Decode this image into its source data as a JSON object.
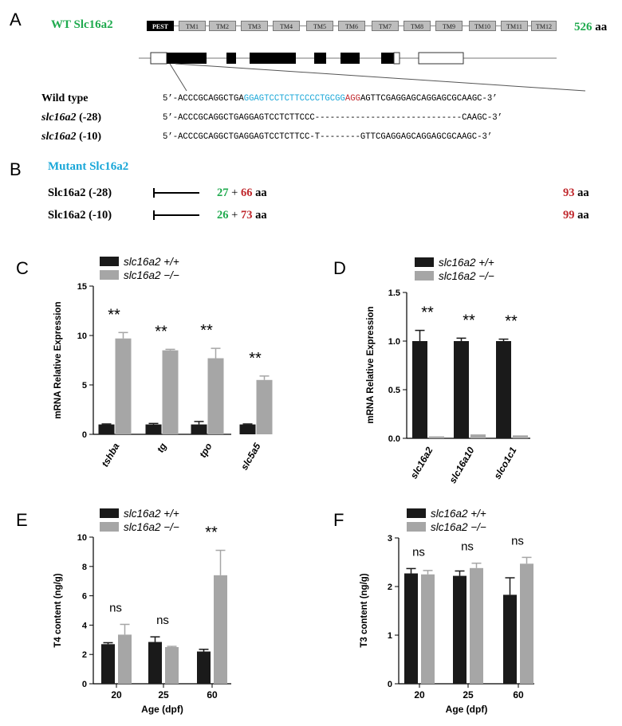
{
  "panelA": {
    "letter": "A",
    "title": "WT Slc16a2",
    "length_value": "526",
    "length_unit": "aa",
    "domains": [
      "PEST",
      "TM1",
      "TM2",
      "TM3",
      "TM4",
      "TM5",
      "TM6",
      "TM7",
      "TM8",
      "TM9",
      "TM10",
      "TM11",
      "TM12"
    ],
    "sequences": [
      {
        "label": "Wild type",
        "italic": false,
        "prefix": "5’-ACCCGCAGGCTGA",
        "target": "GGAGTCCTCTTCCCCTGCGG",
        "pam": "AGG",
        "suffix": "AGTTCGAGGAGCAGGAGCGCAAGC-3’"
      },
      {
        "label": "slc16a2",
        "allele": "(-28)",
        "italic": true,
        "text": "5’-ACCCGCAGGCTGAGGAGTCCTCTTCCC-----------------------------CAAGC-3’"
      },
      {
        "label": "slc16a2",
        "allele": "(-10)",
        "italic": true,
        "text": "5’-ACCCGCAGGCTGAGGAGTCCTCTTCC-T--------GTTCGAGGAGCAGGAGCGCAAGC-3’"
      }
    ]
  },
  "panelB": {
    "letter": "B",
    "title": "Mutant Slc16a2",
    "rows": [
      {
        "label": "Slc16a2 (-28)",
        "wt_part": "27",
        "plus": "+",
        "fs_part": "66",
        "unit": "aa",
        "total": "93",
        "total_unit": "aa"
      },
      {
        "label": "Slc16a2 (-10)",
        "wt_part": "26",
        "plus": "+",
        "fs_part": "73",
        "unit": "aa",
        "total": "99",
        "total_unit": "aa"
      }
    ]
  },
  "colors": {
    "wt_bar": "#1a1a1a",
    "ko_bar": "#a6a6a6",
    "green": "#1faa4e",
    "red": "#c0282d",
    "cyan": "#1aa7d8"
  },
  "chart_data": [
    {
      "id": "C",
      "letter": "C",
      "type": "bar",
      "ylabel": "mRNA Relative Expression",
      "ylim": [
        0,
        15
      ],
      "yticks": [
        "0",
        "5",
        "10",
        "15"
      ],
      "ytickvals": [
        0,
        5,
        10,
        15
      ],
      "categories": [
        "tshba",
        "tg",
        "tpo",
        "slc5a5"
      ],
      "legend": [
        "slc16a2 +/+",
        "slc16a2 −/−"
      ],
      "series": [
        {
          "name": "slc16a2 +/+",
          "values": [
            1.0,
            1.0,
            1.0,
            1.0
          ],
          "err": [
            0.05,
            0.1,
            0.3,
            0.05
          ]
        },
        {
          "name": "slc16a2 −/−",
          "values": [
            9.7,
            8.5,
            7.7,
            5.5
          ],
          "err": [
            0.6,
            0.1,
            1.0,
            0.4
          ]
        }
      ],
      "annotations": [
        "**",
        "**",
        "**",
        "**"
      ]
    },
    {
      "id": "D",
      "letter": "D",
      "type": "bar",
      "ylabel": "mRNA Relative Expression",
      "ylim": [
        0,
        1.5
      ],
      "yticks": [
        "0.0",
        "0.5",
        "1.0",
        "1.5"
      ],
      "ytickvals": [
        0,
        0.5,
        1.0,
        1.5
      ],
      "categories": [
        "slc16a2",
        "slc16a10",
        "slco1c1"
      ],
      "legend": [
        "slc16a2 +/+",
        "slc16a2 −/−"
      ],
      "series": [
        {
          "name": "slc16a2 +/+",
          "values": [
            1.0,
            1.0,
            1.0
          ],
          "err": [
            0.11,
            0.03,
            0.02
          ]
        },
        {
          "name": "slc16a2 −/−",
          "values": [
            0.02,
            0.04,
            0.03
          ],
          "err": [
            0.0,
            0.0,
            0.0
          ]
        }
      ],
      "annotations": [
        "**",
        "**",
        "**"
      ]
    },
    {
      "id": "E",
      "letter": "E",
      "type": "bar",
      "ylabel": "T4 content (ng/g)",
      "xlabel": "Age (dpf)",
      "ylim": [
        0,
        10
      ],
      "yticks": [
        "0",
        "2",
        "4",
        "6",
        "8",
        "10"
      ],
      "ytickvals": [
        0,
        2,
        4,
        6,
        8,
        10
      ],
      "categories": [
        "20",
        "25",
        "60"
      ],
      "legend": [
        "slc16a2 +/+",
        "slc16a2 −/−"
      ],
      "series": [
        {
          "name": "slc16a2 +/+",
          "values": [
            2.7,
            2.85,
            2.2
          ],
          "err": [
            0.1,
            0.35,
            0.15
          ]
        },
        {
          "name": "slc16a2 −/−",
          "values": [
            3.35,
            2.5,
            7.4
          ],
          "err": [
            0.7,
            0.05,
            1.7
          ]
        }
      ],
      "annotations": [
        "ns",
        "ns",
        "**"
      ]
    },
    {
      "id": "F",
      "letter": "F",
      "type": "bar",
      "ylabel": "T3 content (ng/g)",
      "xlabel": "Age (dpf)",
      "ylim": [
        0,
        3
      ],
      "yticks": [
        "0",
        "1",
        "2",
        "3"
      ],
      "ytickvals": [
        0,
        1,
        2,
        3
      ],
      "categories": [
        "20",
        "25",
        "60"
      ],
      "legend": [
        "slc16a2 +/+",
        "slc16a2 −/−"
      ],
      "series": [
        {
          "name": "slc16a2 +/+",
          "values": [
            2.27,
            2.22,
            1.83
          ],
          "err": [
            0.1,
            0.1,
            0.35
          ]
        },
        {
          "name": "slc16a2 −/−",
          "values": [
            2.25,
            2.38,
            2.47
          ],
          "err": [
            0.08,
            0.1,
            0.13
          ]
        }
      ],
      "annotations": [
        "ns",
        "ns",
        "ns"
      ]
    }
  ]
}
